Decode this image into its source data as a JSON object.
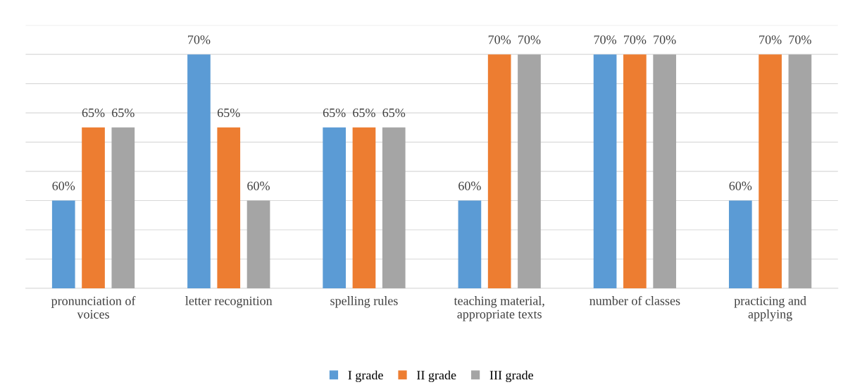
{
  "chart_data": {
    "type": "bar",
    "categories": [
      "pronunciation of voices",
      "letter recognition",
      "spelling rules",
      "teaching material, appropriate texts",
      "number of classes",
      "practicing and applying"
    ],
    "series": [
      {
        "name": "I grade",
        "color": "#5b9bd5",
        "values": [
          60,
          70,
          65,
          60,
          70,
          60
        ],
        "value_labels": [
          "60%",
          "70%",
          "65%",
          "60%",
          "70%",
          "60%"
        ]
      },
      {
        "name": "II grade",
        "color": "#ed7d31",
        "values": [
          65,
          65,
          65,
          70,
          70,
          70
        ],
        "value_labels": [
          "65%",
          "65%",
          "65%",
          "70%",
          "70%",
          "70%"
        ]
      },
      {
        "name": "III grade",
        "color": "#a5a5a5",
        "values": [
          65,
          60,
          65,
          70,
          70,
          70
        ],
        "value_labels": [
          "65%",
          "60%",
          "65%",
          "70%",
          "70%",
          "70%"
        ]
      }
    ],
    "ylim": [
      54,
      72
    ],
    "yticks": [
      {
        "value": 54,
        "label": null
      },
      {
        "value": 56,
        "label": null
      },
      {
        "value": 58,
        "label": null
      },
      {
        "value": 60,
        "label": null
      },
      {
        "value": 62,
        "label": null
      },
      {
        "value": 64,
        "label": null
      },
      {
        "value": 66,
        "label": null
      },
      {
        "value": 68,
        "label": null
      },
      {
        "value": 70,
        "label": null
      },
      {
        "value": 72,
        "label": null
      }
    ],
    "tick_labels": "x",
    "grid": "y",
    "legend": "bottom"
  }
}
